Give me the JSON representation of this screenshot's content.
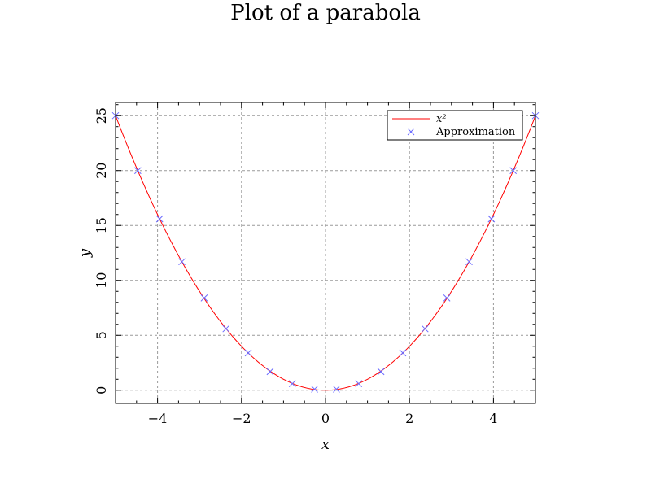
{
  "chart_data": {
    "type": "line",
    "title": "Plot of a parabola",
    "xlabel": "x",
    "ylabel": "y",
    "xlim": [
      -5,
      5
    ],
    "ylim": [
      -1.2,
      26.2
    ],
    "xticks": [
      -4,
      -2,
      0,
      2,
      4
    ],
    "xtick_labels": [
      "−4",
      "−2",
      "0",
      "2",
      "4"
    ],
    "yticks": [
      0,
      5,
      10,
      15,
      20,
      25
    ],
    "ytick_labels": [
      "0",
      "5",
      "10",
      "15",
      "20",
      "25"
    ],
    "grid": true,
    "legend_position": "top-right",
    "series": [
      {
        "name": "x²",
        "type": "line",
        "color": "#ff0000",
        "function": "x^2",
        "x_range": [
          -5,
          5
        ]
      },
      {
        "name": "Approximation",
        "type": "scatter",
        "marker": "x",
        "color": "#6b6bff",
        "x": [
          -5.0,
          -4.47,
          -3.95,
          -3.42,
          -2.89,
          -2.37,
          -1.84,
          -1.32,
          -0.79,
          -0.26,
          0.26,
          0.79,
          1.32,
          1.84,
          2.37,
          2.89,
          3.42,
          3.95,
          4.47,
          5.0
        ],
        "y": [
          25.0,
          20.0,
          15.6,
          11.7,
          8.4,
          5.6,
          3.4,
          1.7,
          0.6,
          0.1,
          0.1,
          0.6,
          1.7,
          3.4,
          5.6,
          8.4,
          11.7,
          15.6,
          20.0,
          25.0
        ]
      }
    ]
  }
}
